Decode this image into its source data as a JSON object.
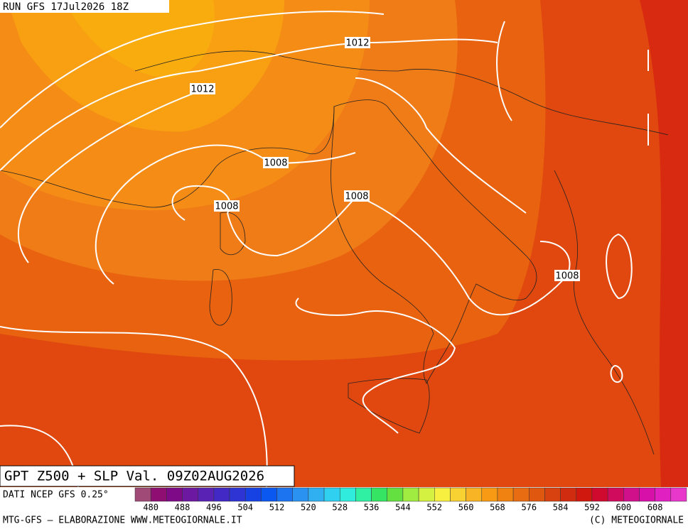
{
  "header": {
    "run": "RUN GFS 17Jul2026 18Z"
  },
  "isobar_labels": [
    "1012",
    "1012",
    "1008",
    "1008",
    "1008",
    "1008"
  ],
  "title": "GPT Z500 + SLP Val. 09Z02AUG2026",
  "source": "DATI NCEP GFS 0.25°",
  "colorbar": {
    "labels": [
      "480",
      "488",
      "496",
      "504",
      "512",
      "520",
      "528",
      "536",
      "544",
      "552",
      "560",
      "568",
      "576",
      "584",
      "592",
      "600",
      "608"
    ],
    "colors": [
      "#a04a78",
      "#8e0e72",
      "#7e0a88",
      "#6c18a0",
      "#5a22b4",
      "#4228c4",
      "#2e34d4",
      "#1642e4",
      "#0a58f0",
      "#1c74f0",
      "#2a92f0",
      "#30b0f0",
      "#30d0f0",
      "#30ecdc",
      "#30f0a4",
      "#34e462",
      "#64e040",
      "#a0ec40",
      "#d4f040",
      "#f8f040",
      "#f8d232",
      "#f8b424",
      "#f89a14",
      "#f08212",
      "#e86c12",
      "#e05810",
      "#d84210",
      "#d02c10",
      "#d0180e",
      "#d00a2e",
      "#d00a5c",
      "#d0108a",
      "#d810aa",
      "#e020c0",
      "#e838cc"
    ]
  },
  "footer": {
    "left": "MTG-GFS — ELABORAZIONE WWW.METEOGIORNALE.IT",
    "right": "(C) METEOGIORNALE"
  }
}
